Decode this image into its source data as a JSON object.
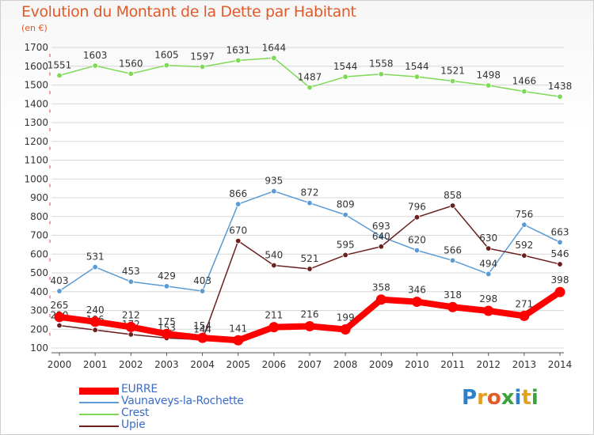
{
  "title": "Evolution du Montant de la Dette par Habitant",
  "subtitle": "(en €)",
  "brand": {
    "text": "Proxiti",
    "letters": [
      "P",
      "r",
      "o",
      "x",
      "i",
      "t",
      "i"
    ],
    "letter_colors": [
      "#2c7fc9",
      "#e0a020",
      "#e05a28",
      "#3aa33a",
      "#2c7fc9",
      "#e0a020",
      "#3aa33a"
    ]
  },
  "chart_data": {
    "type": "line",
    "title": "Evolution du Montant de la Dette par Habitant",
    "ylabel": "(en €)",
    "xlabel": "",
    "x": [
      "2000",
      "2001",
      "2002",
      "2003",
      "2004",
      "2005",
      "2006",
      "2007",
      "2008",
      "2009",
      "2010",
      "2011",
      "2012",
      "2013",
      "2014"
    ],
    "ylim": [
      100,
      1700
    ],
    "yticks": [
      100,
      200,
      300,
      400,
      500,
      600,
      700,
      800,
      900,
      1000,
      1100,
      1200,
      1300,
      1400,
      1500,
      1600,
      1700
    ],
    "grid": true,
    "legend_position": "bottom-left",
    "series": [
      {
        "name": "EURRE",
        "color": "#ff0000",
        "values": [
          265,
          240,
          212,
          175,
          154,
          141,
          211,
          216,
          199,
          358,
          346,
          318,
          298,
          271,
          398
        ]
      },
      {
        "name": "Vaunaveys-la-Rochette",
        "color": "#5a9bd5",
        "values": [
          403,
          531,
          453,
          429,
          403,
          866,
          935,
          872,
          809,
          693,
          620,
          566,
          494,
          756,
          663
        ]
      },
      {
        "name": "Crest",
        "color": "#7ed957",
        "values": [
          1551,
          1603,
          1560,
          1605,
          1597,
          1631,
          1644,
          1487,
          1544,
          1558,
          1544,
          1521,
          1498,
          1466,
          1438
        ]
      },
      {
        "name": "Upie",
        "color": "#6b1f1f",
        "values": [
          220,
          196,
          172,
          153,
          144,
          670,
          540,
          521,
          595,
          640,
          796,
          858,
          630,
          592,
          546
        ]
      }
    ]
  }
}
